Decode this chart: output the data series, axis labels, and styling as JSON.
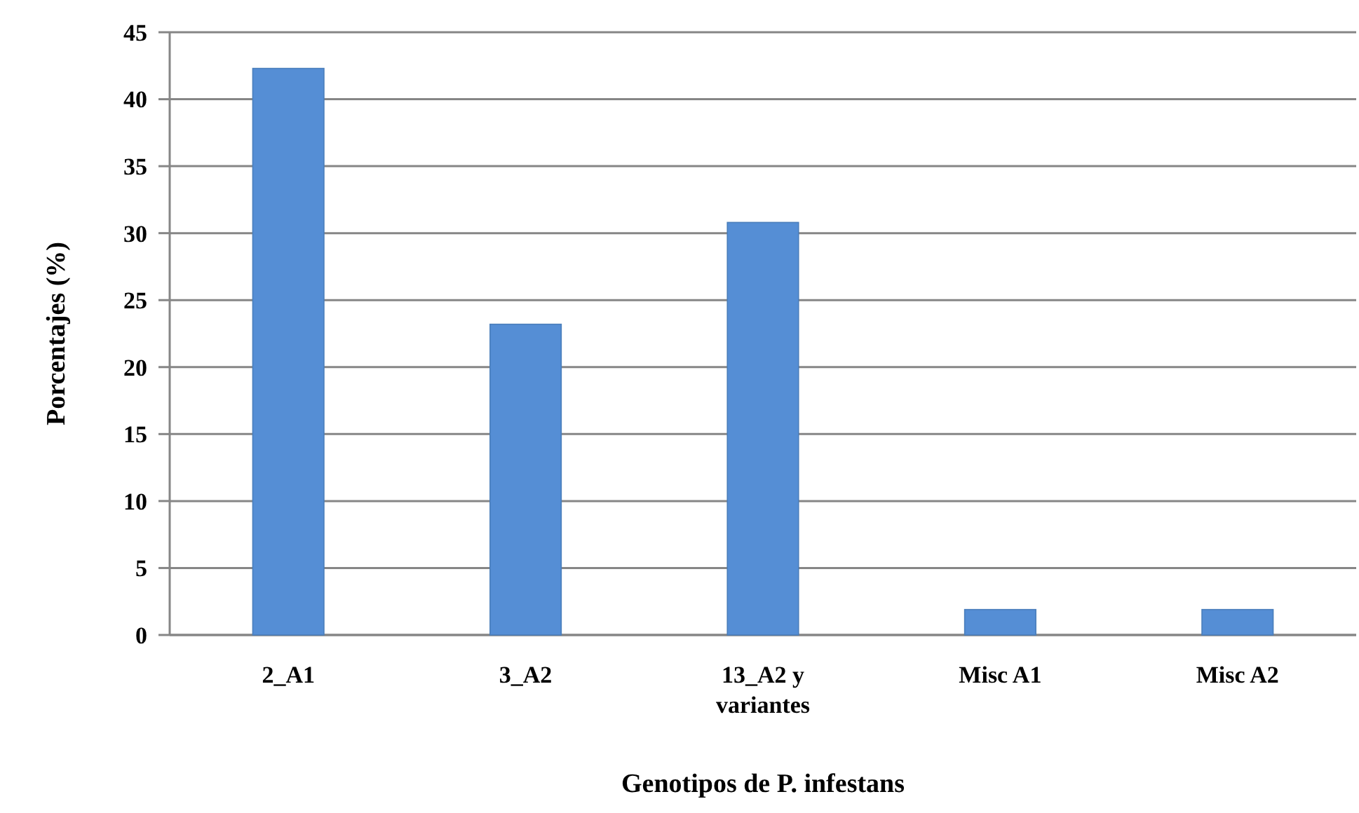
{
  "chart_data": {
    "type": "bar",
    "xlabel": "Genotipos de P. infestans",
    "ylabel": "Porcentajes (%)",
    "categories": [
      "2_A1",
      "3_A2",
      "13_A2 y variantes",
      "Misc A1",
      "Misc A2"
    ],
    "values": [
      42.3,
      23.2,
      30.8,
      1.9,
      1.9
    ],
    "color": "#558ed5",
    "ylim": [
      0,
      45
    ],
    "yticks": [
      0,
      5,
      10,
      15,
      20,
      25,
      30,
      35,
      40,
      45
    ],
    "grid": "y"
  }
}
